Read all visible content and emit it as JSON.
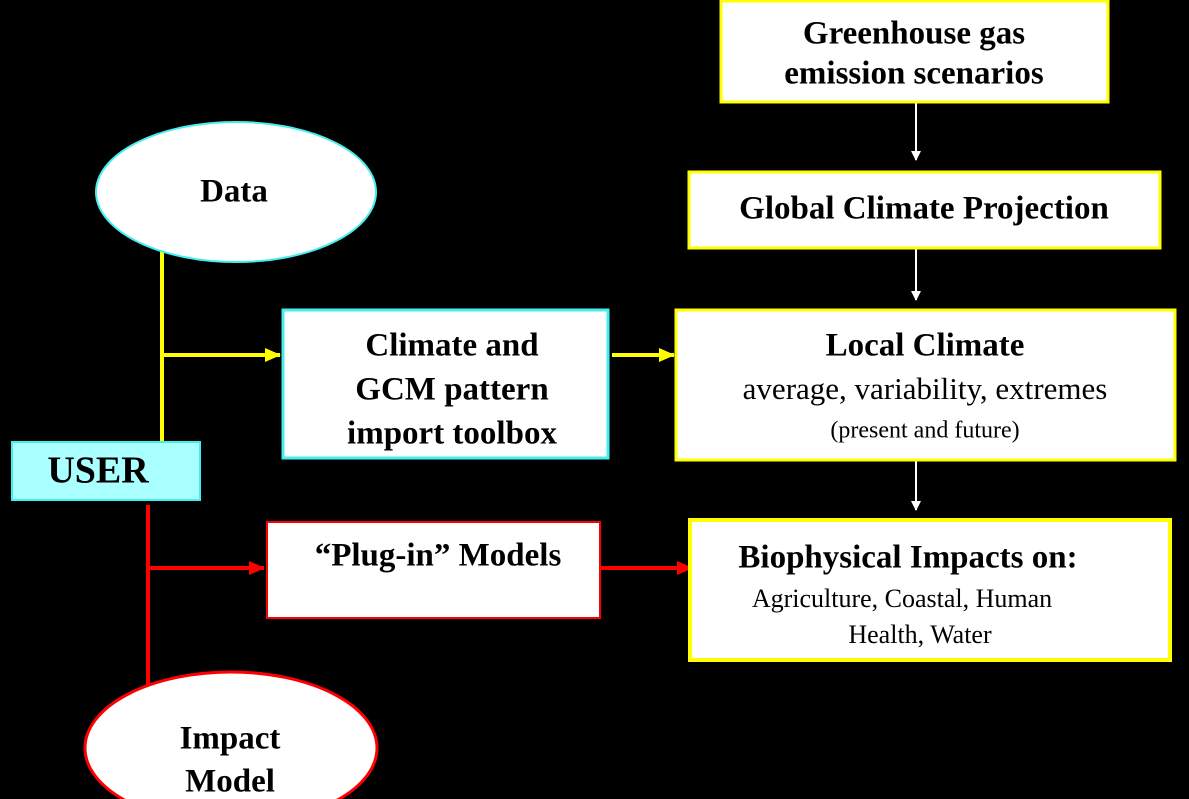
{
  "nodes": [
    {
      "lines": [
        "Greenhouse gas",
        "emission scenarios"
      ]
    },
    {
      "lines": [
        "Global Climate Projection"
      ]
    },
    {
      "lines": [
        "Local Climate",
        "average, variability, extremes",
        "(present and future)"
      ]
    },
    {
      "lines": [
        "Biophysical Impacts on:",
        "Agriculture, Coastal, Human",
        "Health, Water"
      ]
    },
    {
      "lines": [
        "Climate and",
        "GCM pattern",
        "import toolbox"
      ]
    },
    {
      "lines": [
        "“Plug-in” Models"
      ]
    },
    {
      "lines": [
        "USER"
      ]
    },
    {
      "lines": [
        "Data"
      ]
    },
    {
      "lines": [
        "Impact",
        "Model"
      ]
    }
  ]
}
